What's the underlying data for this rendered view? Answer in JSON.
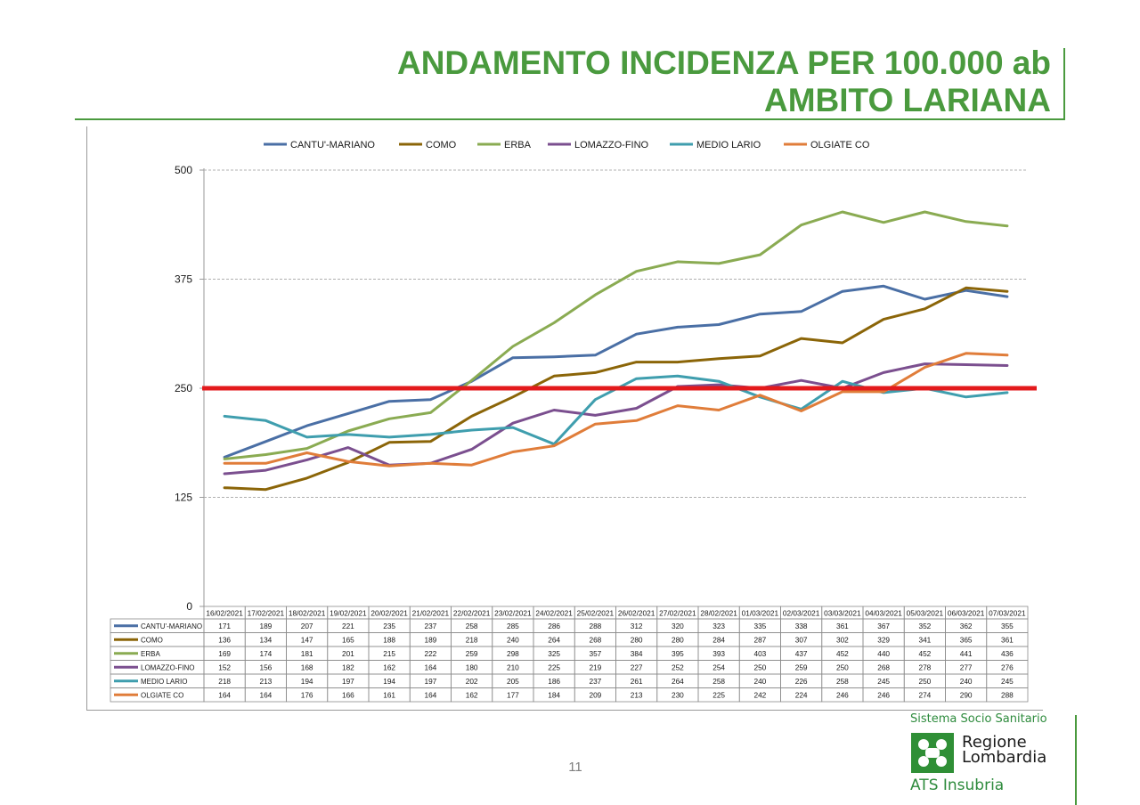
{
  "header": {
    "title_line1": "ANDAMENTO INCIDENZA PER 100.000 ab",
    "title_line2": "AMBITO LARIANA"
  },
  "footer": {
    "page_number": "11",
    "system_label": "Sistema Socio Sanitario",
    "region_line1": "Regione",
    "region_line2": "Lombardia",
    "agency": "ATS Insubria"
  },
  "colors": {
    "brand_green": "#4a9a3e",
    "threshold_red": "#e31a1c"
  },
  "chart_data": {
    "type": "line",
    "title": "",
    "xlabel": "",
    "ylabel": "",
    "ylim": [
      0,
      500
    ],
    "yticks": [
      0,
      125,
      250,
      375,
      500
    ],
    "grid": "horizontal dashed",
    "legend_position": "top",
    "threshold": 250,
    "categories": [
      "16/02/2021",
      "17/02/2021",
      "18/02/2021",
      "19/02/2021",
      "20/02/2021",
      "21/02/2021",
      "22/02/2021",
      "23/02/2021",
      "24/02/2021",
      "25/02/2021",
      "26/02/2021",
      "27/02/2021",
      "28/02/2021",
      "01/03/2021",
      "02/03/2021",
      "03/03/2021",
      "04/03/2021",
      "05/03/2021",
      "06/03/2021",
      "07/03/2021"
    ],
    "series": [
      {
        "name": "CANTU'-MARIANO",
        "color": "#4a6fa5",
        "values": [
          171,
          189,
          207,
          221,
          235,
          237,
          258,
          285,
          286,
          288,
          312,
          320,
          323,
          335,
          338,
          361,
          367,
          352,
          362,
          355
        ]
      },
      {
        "name": "COMO",
        "color": "#8b6508",
        "values": [
          136,
          134,
          147,
          165,
          188,
          189,
          218,
          240,
          264,
          268,
          280,
          280,
          284,
          287,
          307,
          302,
          329,
          341,
          365,
          361
        ]
      },
      {
        "name": "ERBA",
        "color": "#8aab52",
        "values": [
          169,
          174,
          181,
          201,
          215,
          222,
          259,
          298,
          325,
          357,
          384,
          395,
          393,
          403,
          437,
          452,
          440,
          452,
          441,
          436
        ]
      },
      {
        "name": "LOMAZZO-FINO",
        "color": "#7b4f8f",
        "values": [
          152,
          156,
          168,
          182,
          162,
          164,
          180,
          210,
          225,
          219,
          227,
          252,
          254,
          250,
          259,
          250,
          268,
          278,
          277,
          276
        ]
      },
      {
        "name": "MEDIO LARIO",
        "color": "#3f9eae",
        "values": [
          218,
          213,
          194,
          197,
          194,
          197,
          202,
          205,
          186,
          237,
          261,
          264,
          258,
          240,
          226,
          258,
          245,
          250,
          240,
          245
        ]
      },
      {
        "name": "OLGIATE CO",
        "color": "#e07d3a",
        "values": [
          164,
          164,
          176,
          166,
          161,
          164,
          162,
          177,
          184,
          209,
          213,
          230,
          225,
          242,
          224,
          246,
          246,
          274,
          290,
          288
        ]
      }
    ]
  }
}
